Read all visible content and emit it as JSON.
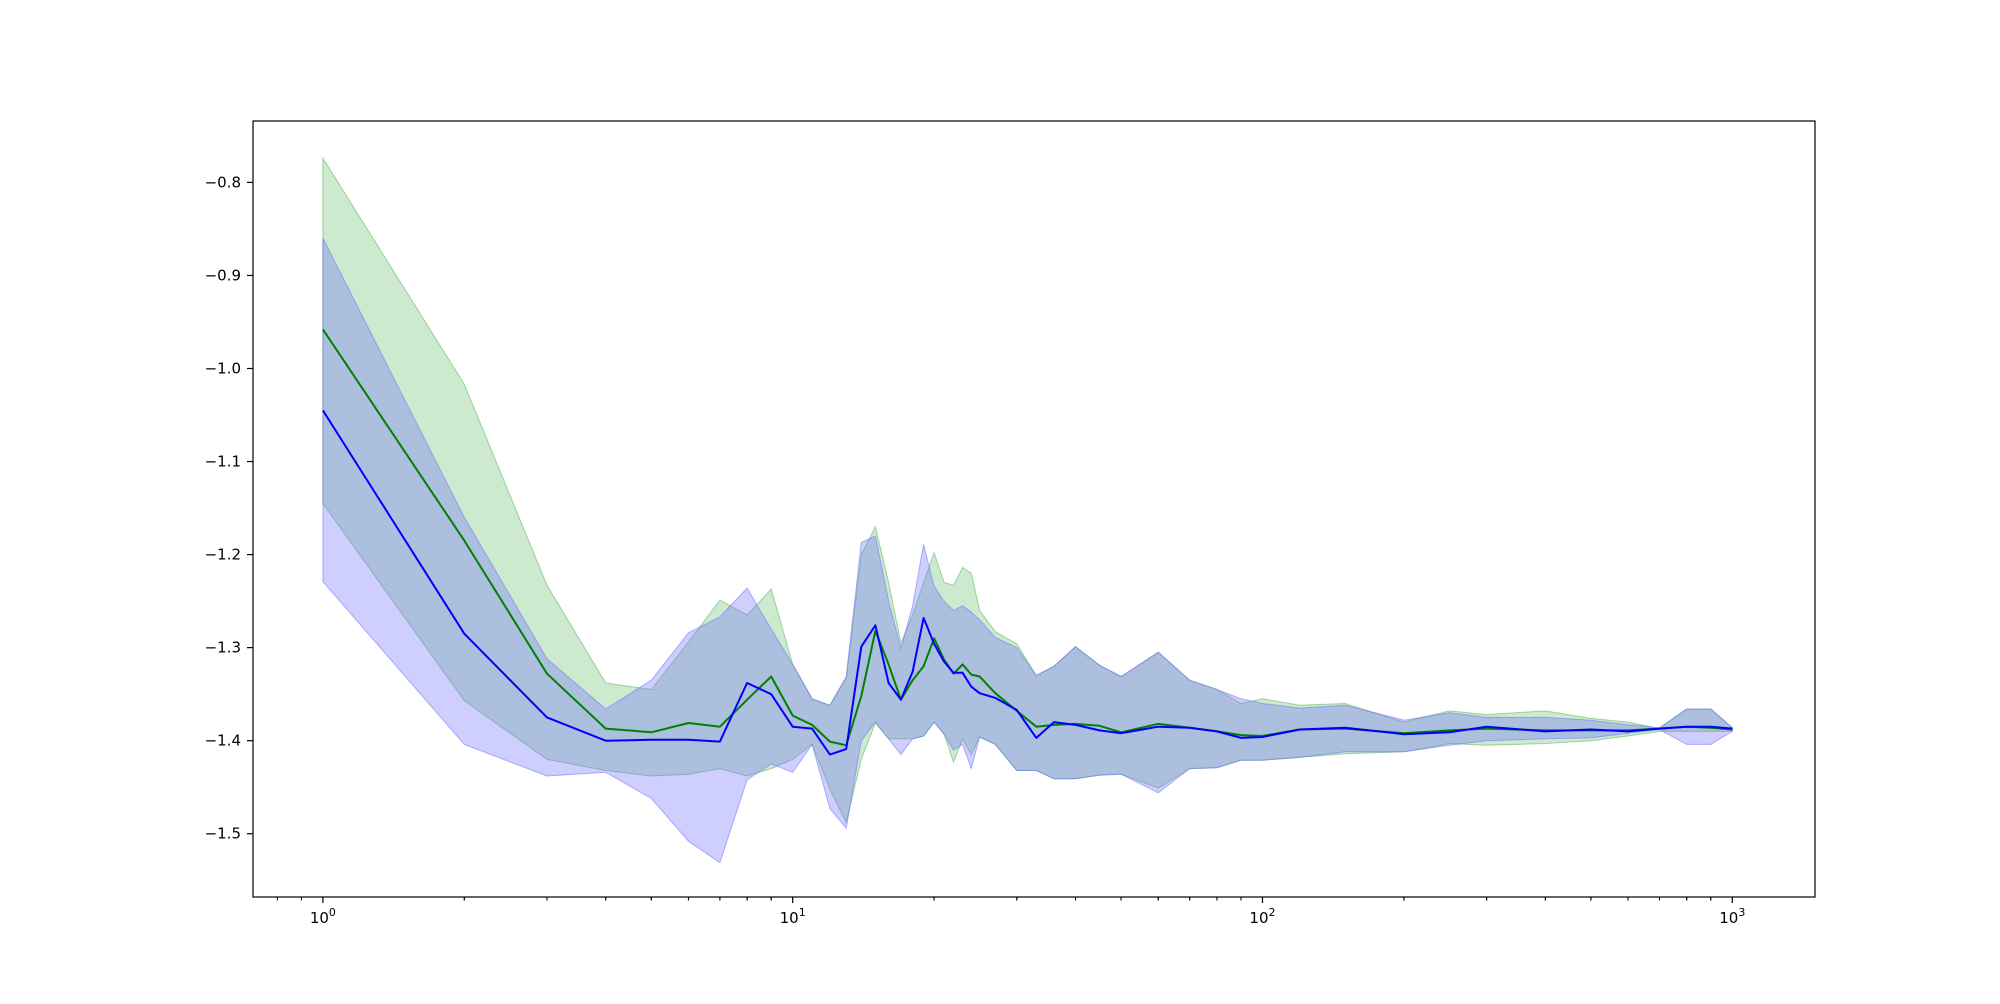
{
  "chart_data": {
    "type": "line",
    "title": "",
    "xlabel": "",
    "ylabel": "",
    "xscale": "log",
    "xlim": [
      0.71,
      1500
    ],
    "ylim": [
      -1.568,
      -0.734
    ],
    "grid": false,
    "legend": "none",
    "xticks": [
      {
        "value": 1,
        "base": "10",
        "exp": "0"
      },
      {
        "value": 10,
        "base": "10",
        "exp": "1"
      },
      {
        "value": 100,
        "base": "10",
        "exp": "2"
      },
      {
        "value": 1000,
        "base": "10",
        "exp": "3"
      }
    ],
    "yticks": [
      {
        "value": -0.8,
        "label": "−0.8"
      },
      {
        "value": -0.9,
        "label": "−0.9"
      },
      {
        "value": -1.0,
        "label": "−1.0"
      },
      {
        "value": -1.1,
        "label": "−1.1"
      },
      {
        "value": -1.2,
        "label": "−1.2"
      },
      {
        "value": -1.3,
        "label": "−1.3"
      },
      {
        "value": -1.4,
        "label": "−1.4"
      },
      {
        "value": -1.5,
        "label": "−1.5"
      }
    ],
    "series": [
      {
        "color": "#008000",
        "band_color": "#4caf50",
        "band_opacity": 0.28,
        "x": [
          1,
          2,
          3,
          4,
          5,
          6,
          7,
          8,
          9,
          10,
          11,
          12,
          13,
          14,
          15,
          16,
          17,
          18,
          19,
          20,
          21,
          22,
          23,
          24,
          25,
          27,
          30,
          33,
          36,
          40,
          45,
          50,
          60,
          70,
          80,
          90,
          100,
          120,
          150,
          200,
          250,
          300,
          400,
          500,
          600,
          700,
          800,
          900,
          1000
        ],
        "y": [
          -0.958,
          -1.185,
          -1.328,
          -1.387,
          -1.391,
          -1.381,
          -1.385,
          -1.356,
          -1.331,
          -1.373,
          -1.383,
          -1.401,
          -1.405,
          -1.352,
          -1.282,
          -1.318,
          -1.356,
          -1.335,
          -1.32,
          -1.29,
          -1.313,
          -1.328,
          -1.318,
          -1.329,
          -1.331,
          -1.349,
          -1.368,
          -1.385,
          -1.383,
          -1.382,
          -1.384,
          -1.391,
          -1.382,
          -1.386,
          -1.39,
          -1.394,
          -1.395,
          -1.388,
          -1.387,
          -1.392,
          -1.389,
          -1.387,
          -1.389,
          -1.389,
          -1.389,
          -1.387,
          -1.385,
          -1.386,
          -1.388
        ],
        "lower": [
          -1.145,
          -1.357,
          -1.42,
          -1.432,
          -1.438,
          -1.436,
          -1.43,
          -1.438,
          -1.43,
          -1.42,
          -1.404,
          -1.452,
          -1.488,
          -1.42,
          -1.381,
          -1.398,
          -1.398,
          -1.398,
          -1.395,
          -1.38,
          -1.393,
          -1.423,
          -1.398,
          -1.415,
          -1.396,
          -1.404,
          -1.432,
          -1.432,
          -1.441,
          -1.441,
          -1.437,
          -1.436,
          -1.451,
          -1.43,
          -1.429,
          -1.421,
          -1.421,
          -1.418,
          -1.414,
          -1.412,
          -1.403,
          -1.405,
          -1.403,
          -1.4,
          -1.395,
          -1.39,
          -1.39,
          -1.39,
          -1.39
        ],
        "upper": [
          -0.774,
          -1.017,
          -1.233,
          -1.338,
          -1.345,
          -1.294,
          -1.249,
          -1.265,
          -1.237,
          -1.318,
          -1.355,
          -1.362,
          -1.333,
          -1.2,
          -1.17,
          -1.23,
          -1.295,
          -1.265,
          -1.23,
          -1.198,
          -1.23,
          -1.233,
          -1.214,
          -1.22,
          -1.26,
          -1.283,
          -1.296,
          -1.33,
          -1.32,
          -1.299,
          -1.319,
          -1.331,
          -1.305,
          -1.335,
          -1.345,
          -1.36,
          -1.355,
          -1.362,
          -1.36,
          -1.38,
          -1.368,
          -1.372,
          -1.368,
          -1.376,
          -1.38,
          -1.387,
          -1.366,
          -1.366,
          -1.386
        ]
      },
      {
        "color": "#0000ff",
        "band_color": "#6a6aff",
        "band_opacity": 0.33,
        "x": [
          1,
          2,
          3,
          4,
          5,
          6,
          7,
          8,
          9,
          10,
          11,
          12,
          13,
          14,
          15,
          16,
          17,
          18,
          19,
          20,
          21,
          22,
          23,
          24,
          25,
          27,
          30,
          33,
          36,
          40,
          45,
          50,
          60,
          70,
          80,
          90,
          100,
          120,
          150,
          200,
          250,
          300,
          400,
          500,
          600,
          700,
          800,
          900,
          1000
        ],
        "y": [
          -1.045,
          -1.285,
          -1.375,
          -1.4,
          -1.399,
          -1.399,
          -1.401,
          -1.338,
          -1.35,
          -1.385,
          -1.387,
          -1.415,
          -1.409,
          -1.299,
          -1.276,
          -1.338,
          -1.356,
          -1.326,
          -1.268,
          -1.296,
          -1.315,
          -1.327,
          -1.327,
          -1.342,
          -1.349,
          -1.354,
          -1.367,
          -1.397,
          -1.38,
          -1.383,
          -1.389,
          -1.392,
          -1.385,
          -1.386,
          -1.39,
          -1.397,
          -1.396,
          -1.388,
          -1.386,
          -1.393,
          -1.391,
          -1.385,
          -1.39,
          -1.388,
          -1.39,
          -1.387,
          -1.385,
          -1.385,
          -1.387
        ],
        "lower": [
          -1.229,
          -1.404,
          -1.438,
          -1.434,
          -1.462,
          -1.508,
          -1.531,
          -1.442,
          -1.425,
          -1.434,
          -1.404,
          -1.473,
          -1.494,
          -1.4,
          -1.38,
          -1.398,
          -1.415,
          -1.398,
          -1.395,
          -1.38,
          -1.393,
          -1.41,
          -1.404,
          -1.43,
          -1.396,
          -1.404,
          -1.432,
          -1.432,
          -1.441,
          -1.441,
          -1.437,
          -1.436,
          -1.456,
          -1.43,
          -1.429,
          -1.421,
          -1.421,
          -1.418,
          -1.412,
          -1.412,
          -1.405,
          -1.4,
          -1.398,
          -1.397,
          -1.392,
          -1.388,
          -1.404,
          -1.404,
          -1.39
        ],
        "upper": [
          -0.86,
          -1.16,
          -1.312,
          -1.366,
          -1.335,
          -1.284,
          -1.267,
          -1.236,
          -1.28,
          -1.318,
          -1.355,
          -1.362,
          -1.331,
          -1.187,
          -1.18,
          -1.25,
          -1.301,
          -1.255,
          -1.189,
          -1.234,
          -1.25,
          -1.26,
          -1.255,
          -1.262,
          -1.27,
          -1.289,
          -1.3,
          -1.33,
          -1.32,
          -1.299,
          -1.319,
          -1.331,
          -1.305,
          -1.335,
          -1.345,
          -1.355,
          -1.36,
          -1.365,
          -1.362,
          -1.378,
          -1.37,
          -1.375,
          -1.375,
          -1.378,
          -1.383,
          -1.386,
          -1.366,
          -1.366,
          -1.386
        ]
      }
    ]
  }
}
